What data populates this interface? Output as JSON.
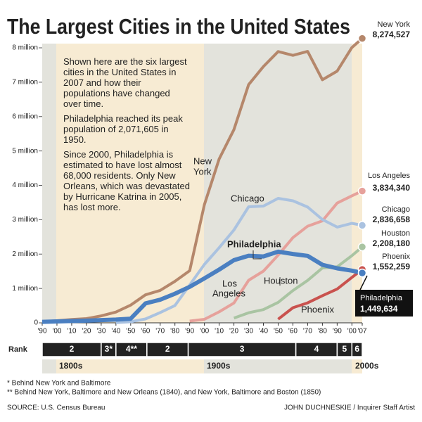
{
  "chart_data": {
    "type": "line",
    "title": "The Largest Cities in the United States",
    "note": [
      "Shown here are the six largest cities in the United States in 2007 and how their populations have changed over time.",
      "Philadelphia reached its peak population of 2,071,605 in 1950.",
      "Since 2000, Philadelphia is estimated to have lost almost 68,000 residents. Only New Orleans, which was devastated by Hurricane Katrina in 2005, has lost more."
    ],
    "x": [
      1790,
      1800,
      1810,
      1820,
      1830,
      1840,
      1850,
      1860,
      1870,
      1880,
      1890,
      1900,
      1910,
      1920,
      1930,
      1940,
      1950,
      1960,
      1970,
      1980,
      1990,
      2000,
      2007
    ],
    "xlim": [
      1790,
      2007
    ],
    "xticks": [
      {
        "value": 1790,
        "label": "'90"
      },
      {
        "value": 1800,
        "label": "'00"
      },
      {
        "value": 1810,
        "label": "'10"
      },
      {
        "value": 1820,
        "label": "'20"
      },
      {
        "value": 1830,
        "label": "'30"
      },
      {
        "value": 1840,
        "label": "'40"
      },
      {
        "value": 1850,
        "label": "'50"
      },
      {
        "value": 1860,
        "label": "'60"
      },
      {
        "value": 1870,
        "label": "'70"
      },
      {
        "value": 1880,
        "label": "'80"
      },
      {
        "value": 1890,
        "label": "'90"
      },
      {
        "value": 1900,
        "label": "'00"
      },
      {
        "value": 1910,
        "label": "'10"
      },
      {
        "value": 1920,
        "label": "'20"
      },
      {
        "value": 1930,
        "label": "'30"
      },
      {
        "value": 1940,
        "label": "'40"
      },
      {
        "value": 1950,
        "label": "'50"
      },
      {
        "value": 1960,
        "label": "'60"
      },
      {
        "value": 1970,
        "label": "'70"
      },
      {
        "value": 1980,
        "label": "'80"
      },
      {
        "value": 1990,
        "label": "'90"
      },
      {
        "value": 2000,
        "label": "'00"
      },
      {
        "value": 2007,
        "label": "'07"
      }
    ],
    "ylim": [
      0,
      8000000
    ],
    "yticks": [
      0,
      {
        "value": 1000000,
        "label": "1 million"
      },
      {
        "value": 2000000,
        "label": "2 million"
      },
      {
        "value": 3000000,
        "label": "3 million"
      },
      {
        "value": 4000000,
        "label": "4 million"
      },
      {
        "value": 5000000,
        "label": "5 million"
      },
      {
        "value": 6000000,
        "label": "6 million"
      },
      {
        "value": 7000000,
        "label": "7 million"
      },
      {
        "value": 8000000,
        "label": "8 million"
      }
    ],
    "series": [
      {
        "name": "New York",
        "color": "#b5876b",
        "values": [
          33131,
          60515,
          96373,
          123706,
          202589,
          312710,
          515547,
          813669,
          942292,
          1206299,
          1515301,
          3437202,
          4766883,
          5620048,
          6930446,
          7454995,
          7891957,
          7781984,
          7894862,
          7071639,
          7322564,
          8008278,
          8274527
        ],
        "value_labels": [
          null,
          null,
          null,
          null,
          null,
          null,
          null,
          null,
          null,
          null,
          null,
          null,
          null,
          null,
          null,
          null,
          null,
          null,
          null,
          null,
          null,
          null,
          "8,274,527"
        ]
      },
      {
        "name": "Los Angeles",
        "color": "#e6a19b",
        "values": [
          null,
          null,
          null,
          null,
          null,
          null,
          null,
          null,
          null,
          null,
          50395,
          102479,
          319198,
          576673,
          1238048,
          1504277,
          1970358,
          2479015,
          2811801,
          2966850,
          3485398,
          3694820,
          3834340
        ],
        "value_labels": [
          null,
          null,
          null,
          null,
          null,
          null,
          null,
          null,
          null,
          null,
          null,
          null,
          null,
          null,
          null,
          null,
          null,
          null,
          null,
          null,
          null,
          null,
          "3,834,340"
        ]
      },
      {
        "name": "Chicago",
        "color": "#aac2e0",
        "values": [
          null,
          null,
          null,
          null,
          null,
          4470,
          29963,
          112172,
          298977,
          503185,
          1099850,
          1698575,
          2185283,
          2701705,
          3376438,
          3396808,
          3620962,
          3550404,
          3366957,
          3005072,
          2783726,
          2896016,
          2836658
        ],
        "value_labels": [
          null,
          null,
          null,
          null,
          null,
          null,
          null,
          null,
          null,
          null,
          null,
          null,
          null,
          null,
          null,
          null,
          null,
          null,
          null,
          null,
          null,
          null,
          "2,836,658"
        ]
      },
      {
        "name": "Houston",
        "color": "#a9c4a2",
        "values": [
          null,
          null,
          null,
          null,
          null,
          null,
          null,
          null,
          null,
          null,
          null,
          null,
          null,
          138276,
          292352,
          384514,
          596163,
          938219,
          1232802,
          1595138,
          1630553,
          1953631,
          2208180
        ],
        "value_labels": [
          null,
          null,
          null,
          null,
          null,
          null,
          null,
          null,
          null,
          null,
          null,
          null,
          null,
          null,
          null,
          null,
          null,
          null,
          null,
          null,
          null,
          null,
          "2,208,180"
        ]
      },
      {
        "name": "Phoenix",
        "color": "#c9524e",
        "values": [
          null,
          null,
          null,
          null,
          null,
          null,
          null,
          null,
          null,
          null,
          null,
          null,
          null,
          null,
          null,
          null,
          106818,
          439170,
          581562,
          789704,
          983403,
          1321045,
          1552259
        ],
        "value_labels": [
          null,
          null,
          null,
          null,
          null,
          null,
          null,
          null,
          null,
          null,
          null,
          null,
          null,
          null,
          null,
          null,
          null,
          null,
          null,
          null,
          null,
          null,
          "1,552,259"
        ]
      },
      {
        "name": "Philadelphia",
        "color": "#4a7fc1",
        "values": [
          28522,
          41220,
          53722,
          63802,
          80462,
          93665,
          121376,
          565529,
          674022,
          847170,
          1046964,
          1293697,
          1549008,
          1823779,
          1950961,
          1931334,
          2071605,
          2002512,
          1948609,
          1688210,
          1585577,
          1517550,
          1449634
        ],
        "value_labels": [
          null,
          null,
          null,
          null,
          null,
          null,
          null,
          null,
          null,
          null,
          null,
          null,
          null,
          null,
          null,
          null,
          null,
          null,
          null,
          null,
          null,
          null,
          "1,449,634"
        ]
      }
    ],
    "annotations": [
      [
        "New",
        "York"
      ],
      [
        "Chicago"
      ],
      [
        "Philadelphia"
      ],
      [
        "Los",
        "Angeles"
      ],
      [
        "Houston"
      ],
      [
        "Phoenix"
      ]
    ],
    "rank_title": "Rank",
    "ranks": [
      {
        "rank": "2",
        "start": 1790,
        "end": 1830
      },
      {
        "rank": "3*",
        "start": 1830,
        "end": 1840
      },
      {
        "rank": "4**",
        "start": 1840,
        "end": 1861
      },
      {
        "rank": "2",
        "start": 1861,
        "end": 1889
      },
      {
        "rank": "3",
        "start": 1889,
        "end": 1962
      },
      {
        "rank": "4",
        "start": 1962,
        "end": 1990
      },
      {
        "rank": "5",
        "start": 1990,
        "end": 2000
      },
      {
        "rank": "6",
        "start": 2000,
        "end": 2007
      }
    ],
    "centuries": [
      "1800s",
      "1900s",
      "2000s"
    ],
    "footnotes": [
      "* Behind New York and Baltimore",
      "** Behind New York, Baltimore and New Orleans (1840), and New York, Baltimore and Boston (1850)"
    ],
    "source": "SOURCE: U.S. Census Bureau",
    "credit": "JOHN DUCHNESKIE / Inquirer Staff Artist"
  }
}
